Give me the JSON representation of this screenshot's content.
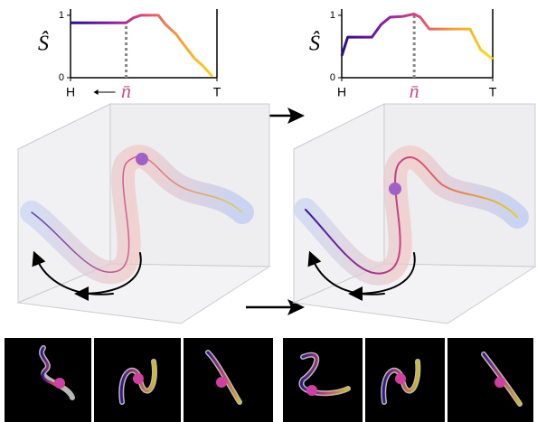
{
  "chart_data": [
    {
      "type": "line",
      "ylabel": "Ŝ",
      "x": [
        0,
        0.1,
        0.2,
        0.3,
        0.38,
        0.43,
        0.48,
        0.55,
        0.6,
        0.65,
        0.72,
        0.8,
        0.85,
        0.9,
        0.97
      ],
      "values": [
        0.88,
        0.88,
        0.88,
        0.88,
        0.88,
        0.96,
        1.0,
        1.0,
        1.0,
        0.85,
        0.7,
        0.45,
        0.3,
        0.2,
        0.02
      ],
      "colors": [
        "#2b0a8c",
        "#7a1aa8",
        "#d8477e",
        "#f7a03a",
        "#f3e11d"
      ],
      "xlim": [
        0,
        1
      ],
      "ylim": [
        0,
        1.1
      ],
      "xticks": [
        {
          "value": 0,
          "label": "H"
        },
        {
          "value": 1,
          "label": "T"
        }
      ],
      "yticks": [
        0,
        1
      ],
      "annotation": {
        "text": "n̄",
        "x": 0.38
      }
    },
    {
      "type": "line",
      "ylabel": "Ŝ",
      "x": [
        0,
        0.04,
        0.1,
        0.2,
        0.26,
        0.32,
        0.4,
        0.48,
        0.52,
        0.58,
        0.7,
        0.85,
        0.92,
        1
      ],
      "values": [
        0.35,
        0.65,
        0.65,
        0.65,
        0.85,
        0.97,
        0.98,
        1.02,
        0.97,
        0.78,
        0.78,
        0.78,
        0.45,
        0.3
      ],
      "colors": [
        "#2b0a8c",
        "#7a1aa8",
        "#d8477e",
        "#f7a03a",
        "#f3e11d"
      ],
      "xlim": [
        0,
        1
      ],
      "ylim": [
        0,
        1.1
      ],
      "xticks": [
        {
          "value": 0,
          "label": "H"
        },
        {
          "value": 1,
          "label": "T"
        }
      ],
      "yticks": [
        0,
        1
      ],
      "annotation": {
        "text": "n̄",
        "x": 0.48
      }
    }
  ]
}
